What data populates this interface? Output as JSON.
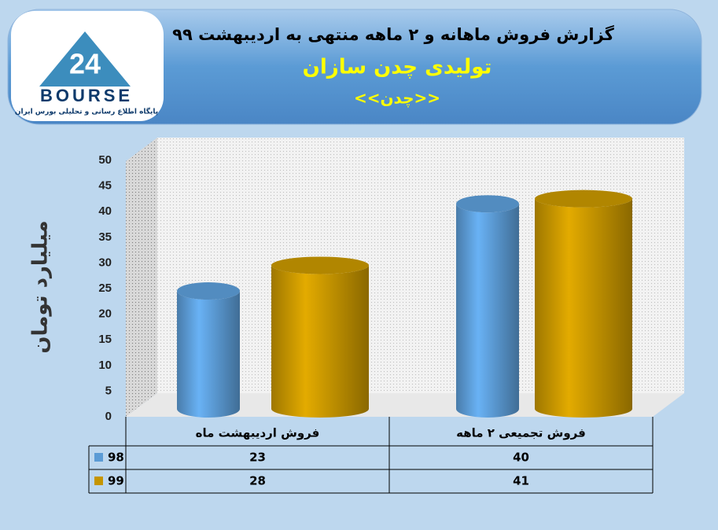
{
  "logo": {
    "mark": "24",
    "name": "BOURSE",
    "caption": "پایگاه اطلاع رسانی و تحلیلی بورس ایران"
  },
  "chart_data": {
    "type": "bar",
    "title": "گزارش فروش ماهانه و ۲ ماهه منتهی به اردیبهشت ۹۹",
    "subtitles": [
      "تولیدی چدن سازان",
      "<<چدن>>"
    ],
    "y_label": "میلیارد تومان",
    "categories": [
      "فروش اردیبهشت  ماه",
      "فروش تجمیعی ۲ ماهه"
    ],
    "series": [
      {
        "name": "98",
        "color": "#5b9bd5",
        "values": [
          23,
          40
        ]
      },
      {
        "name": "99",
        "color": "#c59500",
        "values": [
          28,
          41
        ]
      }
    ],
    "ylim": [
      0,
      50
    ],
    "yticks": [
      0,
      5,
      10,
      15,
      20,
      25,
      30,
      35,
      40,
      45,
      50
    ]
  }
}
